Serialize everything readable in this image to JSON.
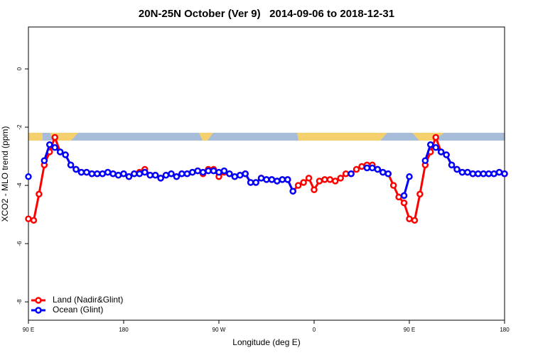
{
  "chart_data": {
    "type": "line",
    "title": "20N-25N October (Ver 9)   2014-09-06 to 2018-12-31",
    "x_label": "Longitude (deg E)",
    "y_label": "XCO2 - MLO trend (ppm)",
    "x": [
      90,
      95,
      100,
      105,
      110,
      115,
      120,
      125,
      130,
      135,
      140,
      145,
      150,
      155,
      160,
      165,
      170,
      175,
      180,
      185,
      190,
      195,
      200,
      205,
      210,
      215,
      220,
      225,
      230,
      235,
      240,
      245,
      250,
      255,
      260,
      265,
      270,
      275,
      280,
      285,
      290,
      295,
      300,
      305,
      310,
      315,
      320,
      325,
      330,
      335,
      340,
      345,
      350,
      355,
      360,
      365,
      370,
      375,
      380,
      385,
      390,
      395,
      400,
      405,
      410,
      415,
      420,
      425,
      430,
      435,
      440,
      445,
      450,
      455,
      460,
      465,
      470,
      475,
      480,
      485,
      490,
      495,
      500,
      505,
      510,
      515,
      520,
      525,
      530,
      535,
      540
    ],
    "series": [
      {
        "name": "Land (Nadir&Glint)",
        "color": "#ff0000",
        "values": [
          -5.15,
          -5.2,
          -4.3,
          -3.3,
          -2.85,
          -2.35,
          -2.85,
          -2.95,
          -3.3,
          -3.45,
          -3.55,
          -3.55,
          -3.6,
          -3.6,
          -3.6,
          -3.55,
          -3.6,
          -3.65,
          -3.6,
          -3.7,
          -3.6,
          -3.55,
          -3.45,
          -3.65,
          -3.65,
          -3.75,
          -3.65,
          -3.6,
          -3.7,
          -3.6,
          -3.6,
          -3.55,
          -3.5,
          -3.6,
          -3.45,
          -3.45,
          -3.7,
          -3.55,
          -3.6,
          -3.7,
          -3.65,
          -3.6,
          -3.9,
          -3.9,
          -3.75,
          -3.8,
          -3.8,
          -3.85,
          -3.8,
          -3.8,
          -4.2,
          -4.0,
          -3.9,
          -3.75,
          -4.15,
          -3.85,
          -3.8,
          -3.8,
          -3.85,
          -3.75,
          -3.6,
          -3.6,
          -3.45,
          -3.35,
          -3.3,
          -3.3,
          -3.45,
          -3.55,
          -3.6,
          -4.0,
          -4.4,
          -4.6,
          -5.15,
          -5.2,
          -4.3,
          -3.3,
          -2.85,
          -2.35,
          -2.85,
          -2.95,
          -3.3,
          -3.45,
          -3.55,
          -3.55,
          -3.6,
          -3.6,
          -3.6,
          -3.6,
          -3.6,
          -3.55,
          -3.6
        ]
      },
      {
        "name": "Ocean (Glint)",
        "color": "#0000ff",
        "values": [
          -3.7,
          null,
          null,
          -3.15,
          -2.6,
          -2.7,
          -2.85,
          -2.95,
          -3.3,
          -3.45,
          -3.55,
          -3.55,
          -3.6,
          -3.6,
          -3.6,
          -3.55,
          -3.6,
          -3.65,
          -3.6,
          -3.7,
          -3.6,
          -3.6,
          -3.55,
          -3.65,
          -3.65,
          -3.75,
          -3.65,
          -3.6,
          -3.7,
          -3.6,
          -3.6,
          -3.55,
          -3.5,
          -3.55,
          -3.5,
          -3.5,
          -3.55,
          -3.5,
          -3.6,
          -3.7,
          -3.65,
          -3.6,
          -3.9,
          -3.9,
          -3.75,
          -3.8,
          -3.8,
          -3.85,
          -3.8,
          -3.8,
          -4.2,
          null,
          null,
          null,
          null,
          null,
          null,
          null,
          null,
          null,
          null,
          -3.6,
          null,
          null,
          -3.4,
          -3.4,
          -3.45,
          -3.55,
          -3.6,
          null,
          null,
          -4.35,
          -3.7,
          null,
          null,
          -3.15,
          -2.6,
          -2.7,
          -2.85,
          -2.95,
          -3.3,
          -3.45,
          -3.55,
          -3.55,
          -3.6,
          -3.6,
          -3.6,
          -3.6,
          -3.6,
          -3.55,
          -3.6
        ]
      }
    ],
    "xlim": [
      90,
      540
    ],
    "xticks": [
      {
        "value": 90,
        "label": "90 E"
      },
      {
        "value": 180,
        "label": "180"
      },
      {
        "value": 270,
        "label": "90 W"
      },
      {
        "value": 360,
        "label": "0"
      },
      {
        "value": 450,
        "label": "90 E"
      },
      {
        "value": 540,
        "label": "180"
      }
    ],
    "ylim": [
      -8.63,
      1.44
    ],
    "yticks": [
      0,
      -2,
      -4,
      -6,
      -8
    ],
    "legend": "bottom-left"
  }
}
